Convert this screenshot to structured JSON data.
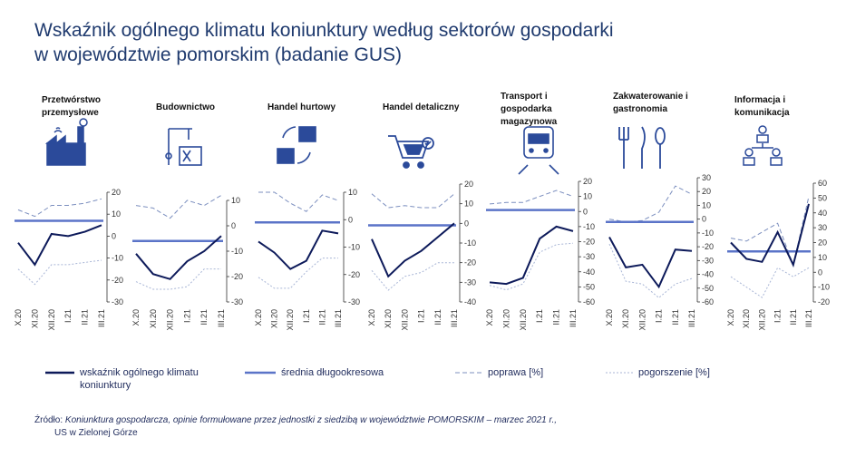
{
  "title_line1": "Wskaźnik ogólnego klimatu koniunktury według sektorów gospodarki",
  "title_line2": "w województwie pomorskim (badanie GUS)",
  "legend": {
    "main": "wskaźnik ogólnego klimatu koniunktury",
    "avg": "średnia długookresowa",
    "up": "poprawa [%]",
    "down": "pogorszenie [%]"
  },
  "source_prefix": "Źródło:",
  "source_text": "Koniunktura gospodarcza, opinie formułowane przez jednostki z siedzibą w województwie POMORSKIM – marzec 2021 r.,",
  "source_line2": "US w Zielonej Górze",
  "colors": {
    "main": "#0d1a5a",
    "avg": "#5b74c8",
    "up": "#7c8fbf",
    "down": "#a9b6d6",
    "text": "#1f2b5c"
  },
  "chart_data": [
    {
      "type": "line",
      "sector": "Przetwórstwo przemysłowe",
      "categories": [
        "X.20",
        "XI.20",
        "XII.20",
        "I.21",
        "II.21",
        "III.21"
      ],
      "ylim": [
        -30,
        20
      ],
      "yticks": [
        -30,
        -20,
        -10,
        0,
        10,
        20
      ],
      "series": [
        {
          "name": "wskaźnik ogólnego klimatu koniunktury",
          "values": [
            -3,
            -13,
            1,
            0,
            2,
            5
          ]
        },
        {
          "name": "średnia długookresowa",
          "values": [
            7,
            7,
            7,
            7,
            7,
            7
          ]
        },
        {
          "name": "poprawa [%]",
          "values": [
            12,
            9,
            14,
            14,
            15,
            17
          ]
        },
        {
          "name": "pogorszenie [%]",
          "values": [
            -15,
            -22,
            -13,
            -13,
            -12,
            -11
          ]
        }
      ]
    },
    {
      "type": "line",
      "sector": "Budownictwo",
      "categories": [
        "X.20",
        "XI.20",
        "XII.20",
        "I.21",
        "II.21",
        "III.21"
      ],
      "ylim": [
        -30,
        10
      ],
      "yticks": [
        -30,
        -20,
        -10,
        0,
        10
      ],
      "series": [
        {
          "name": "wskaźnik ogólnego klimatu koniunktury",
          "values": [
            -11,
            -19,
            -21,
            -14,
            -10,
            -4
          ]
        },
        {
          "name": "średnia długookresowa",
          "values": [
            -6,
            -6,
            -6,
            -6,
            -6,
            -6
          ]
        },
        {
          "name": "poprawa [%]",
          "values": [
            8,
            7,
            3,
            10,
            8,
            12
          ]
        },
        {
          "name": "pogorszenie [%]",
          "values": [
            -22,
            -25,
            -25,
            -24,
            -17,
            -17
          ]
        }
      ]
    },
    {
      "type": "line",
      "sector": "Handel hurtowy",
      "categories": [
        "X.20",
        "XI.20",
        "XII.20",
        "I.21",
        "II.21",
        "III.21"
      ],
      "ylim": [
        -30,
        10
      ],
      "yticks": [
        -30,
        -20,
        -10,
        0,
        10
      ],
      "series": [
        {
          "name": "wskaźnik ogólnego klimatu koniunktury",
          "values": [
            -8,
            -12,
            -18,
            -15,
            -4,
            -5
          ]
        },
        {
          "name": "średnia długookresowa",
          "values": [
            -1,
            -1,
            -1,
            -1,
            -1,
            -1
          ]
        },
        {
          "name": "poprawa [%]",
          "values": [
            10,
            10,
            6,
            3,
            9,
            7
          ]
        },
        {
          "name": "pogorszenie [%]",
          "values": [
            -21,
            -25,
            -25,
            -19,
            -14,
            -14
          ]
        }
      ]
    },
    {
      "type": "line",
      "sector": "Handel detaliczny",
      "categories": [
        "X.20",
        "XI.20",
        "XII.20",
        "I.21",
        "II.21",
        "III.21"
      ],
      "ylim": [
        -40,
        20
      ],
      "yticks": [
        -40,
        -30,
        -20,
        -10,
        0,
        10,
        20
      ],
      "series": [
        {
          "name": "wskaźnik ogólnego klimatu koniunktury",
          "values": [
            -8,
            -27,
            -19,
            -14,
            -7,
            0
          ]
        },
        {
          "name": "średnia długookresowa",
          "values": [
            -1,
            -1,
            -1,
            -1,
            -1,
            -1
          ]
        },
        {
          "name": "poprawa [%]",
          "values": [
            15,
            8,
            9,
            8,
            8,
            15
          ]
        },
        {
          "name": "pogorszenie [%]",
          "values": [
            -24,
            -34,
            -27,
            -25,
            -20,
            -20
          ]
        }
      ]
    },
    {
      "type": "line",
      "sector": "Transport i gospodarka magazynowa",
      "categories": [
        "X.20",
        "XI.20",
        "XII.20",
        "I.21",
        "II.21",
        "III.21"
      ],
      "ylim": [
        -60,
        20
      ],
      "yticks": [
        -60,
        -50,
        -40,
        -30,
        -20,
        -10,
        0,
        10,
        20
      ],
      "series": [
        {
          "name": "wskaźnik ogólnego klimatu koniunktury",
          "values": [
            -47,
            -48,
            -44,
            -18,
            -10,
            -13
          ]
        },
        {
          "name": "średnia długookresowa",
          "values": [
            1,
            1,
            1,
            1,
            1,
            1
          ]
        },
        {
          "name": "poprawa [%]",
          "values": [
            5,
            6,
            6,
            10,
            14,
            10
          ]
        },
        {
          "name": "pogorszenie [%]",
          "values": [
            -49,
            -52,
            -48,
            -27,
            -22,
            -21
          ]
        }
      ]
    },
    {
      "type": "line",
      "sector": "Zakwaterowanie i gastronomia",
      "categories": [
        "X.20",
        "XI.20",
        "XII.20",
        "I.21",
        "II.21",
        "III.21"
      ],
      "ylim": [
        -60,
        30
      ],
      "yticks": [
        -60,
        -50,
        -40,
        -30,
        -20,
        -10,
        0,
        10,
        20,
        30
      ],
      "series": [
        {
          "name": "wskaźnik ogólnego klimatu koniunktury",
          "values": [
            -13,
            -35,
            -33,
            -49,
            -22,
            -23
          ]
        },
        {
          "name": "średnia długookresowa",
          "values": [
            -2,
            -2,
            -2,
            -2,
            -2,
            -2
          ]
        },
        {
          "name": "poprawa [%]",
          "values": [
            0,
            -2,
            -1,
            5,
            24,
            18
          ]
        },
        {
          "name": "pogorszenie [%]",
          "values": [
            -18,
            -45,
            -47,
            -57,
            -47,
            -43
          ]
        }
      ]
    },
    {
      "type": "line",
      "sector": "Informacja i komunikacja",
      "categories": [
        "X.20",
        "XI.20",
        "XII.20",
        "I.21",
        "II.21",
        "III.21"
      ],
      "ylim": [
        -20,
        60
      ],
      "yticks": [
        -20,
        -10,
        0,
        10,
        20,
        30,
        40,
        50,
        60
      ],
      "series": [
        {
          "name": "wskaźnik ogólnego klimatu koniunktury",
          "values": [
            20,
            9,
            7,
            27,
            5,
            46
          ]
        },
        {
          "name": "średnia długookresowa",
          "values": [
            14,
            14,
            14,
            14,
            14,
            14
          ]
        },
        {
          "name": "poprawa [%]",
          "values": [
            23,
            21,
            27,
            33,
            5,
            51
          ]
        },
        {
          "name": "pogorszenie [%]",
          "values": [
            -3,
            -10,
            -17,
            3,
            -3,
            3
          ]
        }
      ]
    }
  ]
}
